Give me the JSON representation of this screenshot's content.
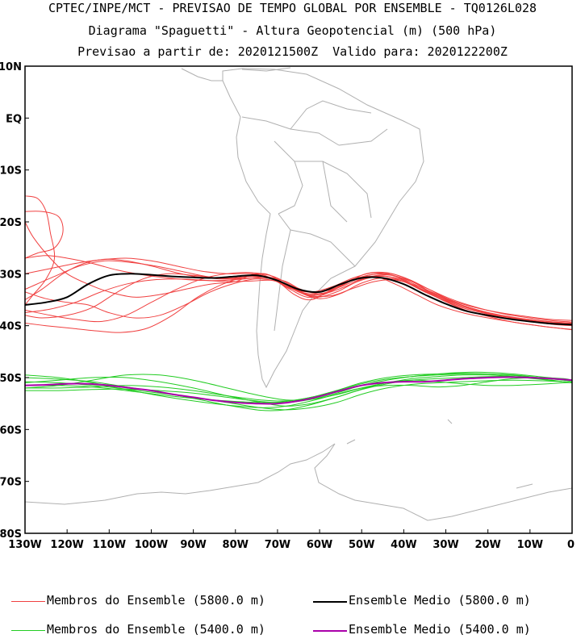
{
  "title": {
    "line1": "CPTEC/INPE/MCT - PREVISAO DE TEMPO GLOBAL POR ENSEMBLE - TQ0126L028",
    "line2": "Diagrama \"Spaguetti\" - Altura Geopotencial (m) (500 hPa)",
    "line3": "Previsao a partir de: 2020121500Z  Valido para: 2020122200Z"
  },
  "axes": {
    "lat_labels": [
      "10N",
      "EQ",
      "10S",
      "20S",
      "30S",
      "40S",
      "50S",
      "60S",
      "70S",
      "80S"
    ],
    "lat_values": [
      10,
      0,
      -10,
      -20,
      -30,
      -40,
      -50,
      -60,
      -70,
      -80
    ],
    "lon_labels": [
      "130W",
      "120W",
      "110W",
      "100W",
      "90W",
      "80W",
      "70W",
      "60W",
      "50W",
      "40W",
      "30W",
      "20W",
      "10W",
      "0"
    ],
    "lon_values": [
      -130,
      -120,
      -110,
      -100,
      -90,
      -80,
      -70,
      -60,
      -50,
      -40,
      -30,
      -20,
      -10,
      0
    ],
    "lon_range": [
      -130,
      0
    ],
    "lat_range": [
      -80,
      10
    ]
  },
  "colors": {
    "members_5800": "#f04040",
    "mean_5800": "#000000",
    "members_5400": "#22cc22",
    "mean_5400": "#aa00aa",
    "land": "#b0b0b0"
  },
  "legend": [
    {
      "label": "Membros do Ensemble (5800.0 m)",
      "color": "#f04040"
    },
    {
      "label": "Ensemble Medio (5800.0 m)",
      "color": "#000000"
    },
    {
      "label": "Membros do Ensemble (5400.0 m)",
      "color": "#22cc22"
    },
    {
      "label": "Ensemble Medio (5400.0 m)",
      "color": "#aa00aa"
    }
  ],
  "chart_data": {
    "type": "line",
    "x_unit": "longitude (deg, negative = W)",
    "y_unit": "latitude (deg, negative = S)",
    "mean_5800": {
      "lon": [
        -130,
        -125,
        -120,
        -115,
        -110,
        -105,
        -100,
        -95,
        -90,
        -85,
        -80,
        -75,
        -70,
        -65,
        -60,
        -55,
        -50,
        -45,
        -40,
        -35,
        -30,
        -25,
        -20,
        -15,
        -10,
        -5,
        0
      ],
      "lat": [
        -36,
        -35.5,
        -34.5,
        -32,
        -30.3,
        -30,
        -30.2,
        -30.5,
        -30.7,
        -30.8,
        -30.5,
        -30.3,
        -31.3,
        -33,
        -33.5,
        -32,
        -30.8,
        -30.8,
        -32,
        -34,
        -35.8,
        -37.2,
        -38,
        -38.7,
        -39.2,
        -39.6,
        -39.8
      ]
    },
    "mean_5400": {
      "lon": [
        -130,
        -125,
        -120,
        -115,
        -110,
        -105,
        -100,
        -95,
        -90,
        -85,
        -80,
        -75,
        -70,
        -65,
        -60,
        -55,
        -50,
        -45,
        -40,
        -35,
        -30,
        -25,
        -20,
        -15,
        -10,
        -5,
        0
      ],
      "lat": [
        -51.5,
        -51.4,
        -51.2,
        -51.2,
        -51.5,
        -52,
        -52.5,
        -53.2,
        -53.8,
        -54.4,
        -54.8,
        -55,
        -55,
        -54.5,
        -53.6,
        -52.5,
        -51.5,
        -51,
        -50.8,
        -50.8,
        -50.5,
        -50.2,
        -50,
        -49.9,
        -50,
        -50.2,
        -50.5
      ]
    },
    "members_5800": [
      {
        "lon": [
          -130,
          -127,
          -125,
          -124,
          -123,
          -125,
          -128,
          -130
        ],
        "lat": [
          -15,
          -15.5,
          -18,
          -22,
          -27,
          -31,
          -34,
          -36
        ]
      },
      {
        "lon": [
          -130,
          -126,
          -122,
          -121,
          -123,
          -127,
          -130
        ],
        "lat": [
          -18,
          -18,
          -19,
          -22,
          -25,
          -26,
          -27
        ]
      },
      {
        "lon": [
          -130,
          -128,
          -124,
          -120,
          -115,
          -110,
          -104,
          -98,
          -92,
          -86,
          -80,
          -75,
          -70,
          -66,
          -62,
          -57,
          -52,
          -47,
          -42,
          -37,
          -32,
          -26,
          -20,
          -14,
          -8,
          -3,
          0
        ],
        "lat": [
          -20,
          -23,
          -27,
          -30,
          -32,
          -33.5,
          -34.5,
          -34,
          -33,
          -32,
          -31.5,
          -30,
          -31.5,
          -34,
          -35,
          -33,
          -31,
          -30.5,
          -32,
          -34,
          -36,
          -37.5,
          -38.5,
          -39.3,
          -40,
          -40.5,
          -40.8
        ]
      },
      {
        "lon": [
          -130,
          -126,
          -120,
          -114,
          -108,
          -102,
          -96,
          -90,
          -84,
          -78,
          -73,
          -68,
          -64,
          -60,
          -55,
          -50,
          -45,
          -40,
          -35,
          -30,
          -24,
          -18,
          -12,
          -6,
          0
        ],
        "lat": [
          -38,
          -38.5,
          -38,
          -36.5,
          -33.5,
          -31,
          -30,
          -30.3,
          -30.8,
          -30.6,
          -30,
          -32,
          -33.8,
          -34,
          -32.5,
          -31,
          -30.4,
          -31.5,
          -33.5,
          -35.2,
          -36.8,
          -38,
          -38.8,
          -39.4,
          -39.6
        ]
      },
      {
        "lon": [
          -130,
          -125,
          -119,
          -113,
          -107,
          -101,
          -95,
          -89,
          -83,
          -77,
          -72,
          -67,
          -63,
          -59,
          -54,
          -49,
          -44,
          -39,
          -34,
          -29,
          -23,
          -17,
          -11,
          -5,
          0
        ],
        "lat": [
          -39.5,
          -40,
          -40.5,
          -41,
          -41.3,
          -40.5,
          -38,
          -34.5,
          -32,
          -30.5,
          -30.8,
          -33,
          -34.5,
          -34,
          -32,
          -30,
          -29.8,
          -31,
          -33,
          -35,
          -36.5,
          -37.5,
          -38.2,
          -38.8,
          -39
        ]
      },
      {
        "lon": [
          -130,
          -124,
          -118,
          -112,
          -106,
          -100,
          -94,
          -88,
          -82,
          -76,
          -71,
          -66,
          -62,
          -58,
          -53,
          -48,
          -43,
          -38,
          -33,
          -28,
          -22,
          -16,
          -10,
          -4,
          0
        ],
        "lat": [
          -37,
          -38,
          -38.8,
          -39.2,
          -38,
          -35.5,
          -33,
          -31,
          -30,
          -29.8,
          -30.5,
          -32.5,
          -33.5,
          -33.2,
          -31.5,
          -30.2,
          -30,
          -31.5,
          -33.8,
          -35.8,
          -37.2,
          -38.3,
          -39,
          -39.5,
          -39.8
        ]
      },
      {
        "lon": [
          -130,
          -123,
          -117,
          -111,
          -105,
          -99,
          -93,
          -87,
          -81,
          -75,
          -70,
          -66,
          -61,
          -56,
          -51,
          -46,
          -41,
          -36,
          -31,
          -26,
          -20,
          -14,
          -8,
          -3,
          0
        ],
        "lat": [
          -33,
          -30.5,
          -28.5,
          -27.5,
          -27.8,
          -28.5,
          -29.5,
          -30.5,
          -31,
          -30.8,
          -31.2,
          -33,
          -34.5,
          -33.5,
          -31.5,
          -30.5,
          -31,
          -33,
          -35,
          -36.8,
          -38.2,
          -39.3,
          -40,
          -40.5,
          -40.7
        ]
      },
      {
        "lon": [
          -130,
          -124,
          -118,
          -112,
          -106,
          -100,
          -94,
          -88,
          -82,
          -76,
          -71,
          -67,
          -62,
          -57,
          -52,
          -47,
          -42,
          -37,
          -32,
          -27,
          -21,
          -15,
          -9,
          -4,
          0
        ],
        "lat": [
          -30,
          -29,
          -28,
          -27.3,
          -27,
          -27.5,
          -28.5,
          -29.5,
          -30,
          -30,
          -31,
          -32.8,
          -33.5,
          -32.5,
          -30.8,
          -29.8,
          -30.5,
          -32.5,
          -34.5,
          -36.3,
          -37.6,
          -38.6,
          -39.3,
          -39.8,
          -40
        ]
      },
      {
        "lon": [
          -130,
          -126,
          -121,
          -116,
          -111,
          -106,
          -100,
          -94,
          -88,
          -82,
          -76,
          -71,
          -67,
          -63,
          -58,
          -53,
          -48,
          -43,
          -38,
          -33,
          -27,
          -21,
          -15,
          -9,
          -4,
          0
        ],
        "lat": [
          -35,
          -33,
          -30,
          -28,
          -27.2,
          -27.5,
          -28.5,
          -29.8,
          -30.7,
          -31,
          -30.5,
          -30.8,
          -32.5,
          -33.8,
          -33.5,
          -31.5,
          -30.2,
          -30.2,
          -31.8,
          -33.8,
          -35.8,
          -37.3,
          -38.3,
          -38.9,
          -39.3,
          -39.5
        ]
      },
      {
        "lon": [
          -130,
          -125,
          -120,
          -115,
          -110,
          -104,
          -98,
          -92,
          -86,
          -80,
          -75,
          -70,
          -65,
          -60,
          -55,
          -50,
          -45,
          -40,
          -35,
          -30,
          -24,
          -18,
          -12,
          -6,
          0
        ],
        "lat": [
          -33.5,
          -34.8,
          -35.5,
          -36,
          -37.5,
          -38.5,
          -38,
          -36,
          -33.5,
          -31.8,
          -31,
          -31.5,
          -33.5,
          -34.8,
          -33.8,
          -31.8,
          -30.8,
          -31.5,
          -33.2,
          -35,
          -36.6,
          -37.8,
          -38.6,
          -39.2,
          -39.5
        ]
      },
      {
        "lon": [
          -130,
          -125,
          -120,
          -114,
          -108,
          -102,
          -96,
          -90,
          -84,
          -78,
          -73,
          -68,
          -64,
          -59,
          -54,
          -49,
          -44,
          -39,
          -34,
          -29,
          -23,
          -17,
          -11,
          -5,
          0
        ],
        "lat": [
          -27,
          -26.5,
          -27,
          -28,
          -29.3,
          -30.2,
          -30.8,
          -31.2,
          -31.3,
          -31,
          -30.6,
          -31.5,
          -33.2,
          -33.8,
          -32.5,
          -30.8,
          -30.2,
          -31.2,
          -33,
          -34.8,
          -36.4,
          -37.6,
          -38.4,
          -39,
          -39.3
        ]
      },
      {
        "lon": [
          -130,
          -124,
          -118,
          -112,
          -106,
          -100,
          -94,
          -88,
          -82,
          -76,
          -71,
          -66,
          -62,
          -57,
          -52,
          -47,
          -42,
          -37,
          -32,
          -27,
          -21,
          -15,
          -9,
          -3,
          0
        ],
        "lat": [
          -37.5,
          -36.8,
          -35.5,
          -33.5,
          -32,
          -31.2,
          -31,
          -31.2,
          -31.5,
          -31.4,
          -31.3,
          -32.8,
          -34.2,
          -34.2,
          -32.8,
          -31.5,
          -31.2,
          -32.3,
          -34,
          -35.8,
          -37.3,
          -38.4,
          -39.2,
          -39.6,
          -39.8
        ]
      }
    ],
    "members_5400": [
      {
        "lon": [
          -130,
          -122,
          -114,
          -106,
          -98,
          -90,
          -82,
          -74,
          -68,
          -62,
          -56,
          -50,
          -44,
          -38,
          -32,
          -26,
          -20,
          -14,
          -8,
          -2,
          0
        ],
        "lat": [
          -50,
          -50.3,
          -50.8,
          -51.8,
          -52.8,
          -54,
          -55.3,
          -56.3,
          -56.2,
          -55.2,
          -53.8,
          -52.3,
          -51.2,
          -50.5,
          -50.2,
          -50,
          -49.8,
          -49.8,
          -50.2,
          -50.8,
          -51
        ]
      },
      {
        "lon": [
          -130,
          -122,
          -114,
          -106,
          -98,
          -90,
          -82,
          -74,
          -68,
          -62,
          -56,
          -50,
          -44,
          -38,
          -32,
          -26,
          -20,
          -14,
          -8,
          -2,
          0
        ],
        "lat": [
          -52.5,
          -52.5,
          -52.3,
          -52.2,
          -52.5,
          -53,
          -53.8,
          -54.6,
          -54.8,
          -54.2,
          -53,
          -51.5,
          -50.5,
          -49.8,
          -49.3,
          -49,
          -49,
          -49.3,
          -49.8,
          -50.3,
          -50.5
        ]
      },
      {
        "lon": [
          -130,
          -122,
          -114,
          -106,
          -98,
          -90,
          -82,
          -74,
          -68,
          -62,
          -56,
          -50,
          -44,
          -38,
          -32,
          -26,
          -20,
          -14,
          -8,
          -2,
          0
        ],
        "lat": [
          -51,
          -50.5,
          -50,
          -50,
          -50.8,
          -52,
          -53.5,
          -54.8,
          -55.5,
          -55,
          -53.8,
          -52.2,
          -51,
          -50.5,
          -50.8,
          -51.2,
          -51.5,
          -51.5,
          -51.3,
          -51,
          -51
        ]
      },
      {
        "lon": [
          -130,
          -122,
          -114,
          -106,
          -98,
          -90,
          -82,
          -74,
          -68,
          -62,
          -56,
          -50,
          -44,
          -38,
          -32,
          -26,
          -20,
          -14,
          -8,
          -2,
          0
        ],
        "lat": [
          -52,
          -51.5,
          -50.5,
          -49.5,
          -49.5,
          -50.5,
          -52,
          -53.5,
          -54.3,
          -54.2,
          -53.3,
          -52,
          -51,
          -50.2,
          -49.8,
          -49.5,
          -49.5,
          -49.8,
          -50.3,
          -50.8,
          -51
        ]
      },
      {
        "lon": [
          -130,
          -122,
          -114,
          -106,
          -98,
          -90,
          -82,
          -74,
          -68,
          -62,
          -56,
          -50,
          -44,
          -38,
          -32,
          -26,
          -20,
          -14,
          -8,
          -2,
          0
        ],
        "lat": [
          -49.5,
          -50,
          -51,
          -52.3,
          -53.5,
          -54.5,
          -55.3,
          -55.8,
          -55.5,
          -54.5,
          -53.2,
          -52,
          -51.5,
          -51.5,
          -51.8,
          -51.5,
          -50.8,
          -50.2,
          -50,
          -50.2,
          -50.5
        ]
      },
      {
        "lon": [
          -130,
          -122,
          -114,
          -106,
          -98,
          -90,
          -82,
          -74,
          -68,
          -62,
          -56,
          -50,
          -44,
          -38,
          -32,
          -26,
          -20,
          -14,
          -8,
          -2,
          0
        ],
        "lat": [
          -51.5,
          -51.5,
          -51.8,
          -52.5,
          -53.3,
          -54,
          -54.5,
          -54.8,
          -54.6,
          -53.8,
          -52.5,
          -51.2,
          -50.3,
          -49.8,
          -49.5,
          -49.3,
          -49.3,
          -49.5,
          -50,
          -50.5,
          -50.8
        ]
      },
      {
        "lon": [
          -130,
          -122,
          -114,
          -106,
          -98,
          -90,
          -82,
          -74,
          -68,
          -62,
          -56,
          -50,
          -44,
          -38,
          -32,
          -26,
          -20,
          -14,
          -8,
          -2,
          0
        ],
        "lat": [
          -50.8,
          -51,
          -51.5,
          -52.2,
          -53,
          -53.8,
          -54.8,
          -55.8,
          -56.2,
          -55.8,
          -54.8,
          -53.2,
          -52,
          -51.3,
          -51,
          -50.8,
          -50.6,
          -50.5,
          -50.6,
          -50.8,
          -51
        ]
      },
      {
        "lon": [
          -130,
          -122,
          -114,
          -106,
          -98,
          -90,
          -82,
          -74,
          -68,
          -62,
          -56,
          -50,
          -44,
          -38,
          -32,
          -26,
          -20,
          -14,
          -8,
          -2,
          0
        ],
        "lat": [
          -52,
          -52,
          -51.8,
          -51.5,
          -51.8,
          -52.5,
          -53.5,
          -54.3,
          -54.5,
          -53.8,
          -52.5,
          -51,
          -50,
          -49.5,
          -49.3,
          -49.2,
          -49.3,
          -49.6,
          -50,
          -50.4,
          -50.6
        ]
      }
    ]
  }
}
